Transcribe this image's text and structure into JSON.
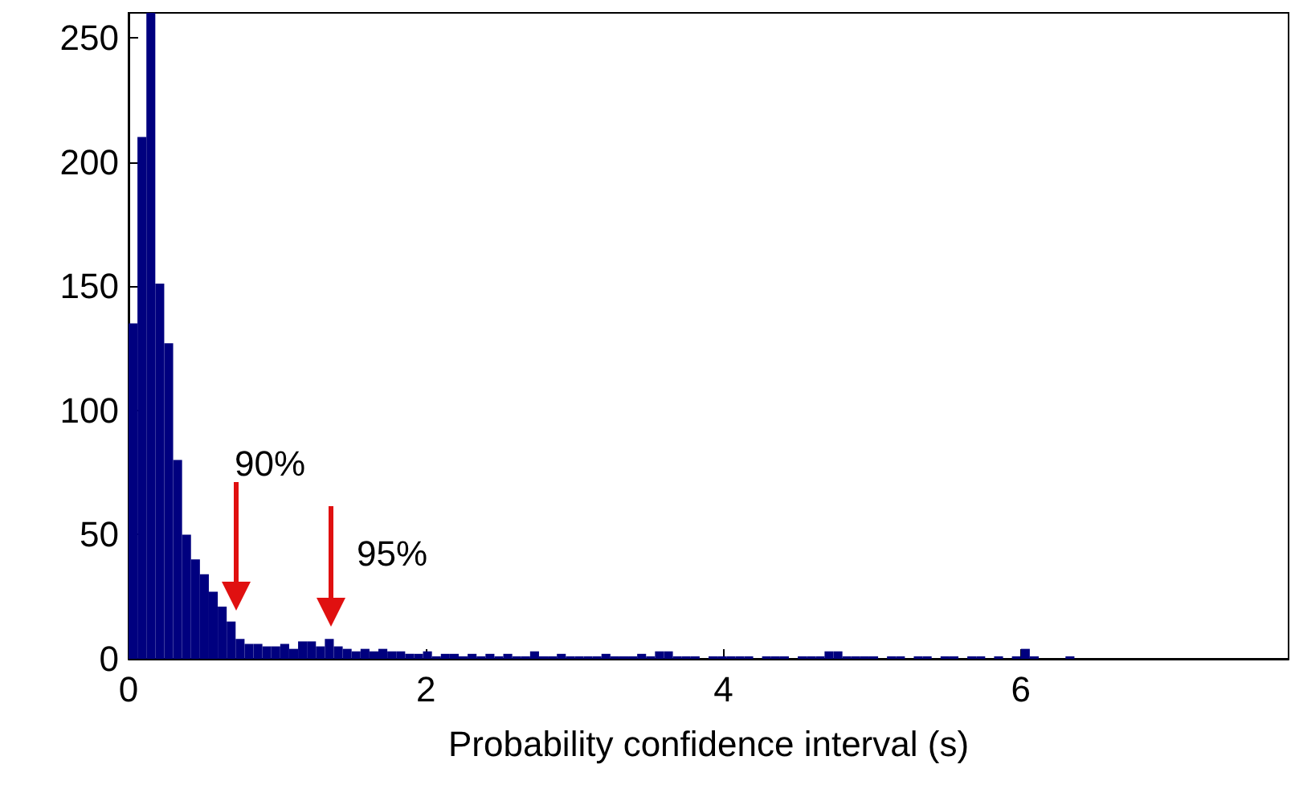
{
  "chart_data": {
    "type": "histogram",
    "xlabel": "Probability confidence interval (s)",
    "color": "#00007f",
    "bins": [
      0,
      0.06,
      0.12,
      0.18,
      0.24,
      0.3,
      0.36,
      0.42,
      0.48,
      0.54,
      0.6,
      0.66,
      0.72,
      0.78,
      0.84,
      0.9,
      0.96,
      1.02,
      1.08,
      1.14,
      1.2,
      1.26,
      1.32,
      1.38,
      1.44,
      1.5,
      1.56,
      1.62,
      1.68,
      1.74,
      1.8,
      1.86,
      1.92,
      1.98,
      2.04,
      2.1,
      2.16,
      2.22,
      2.28,
      2.34,
      2.4,
      2.46,
      2.52,
      2.58,
      2.64,
      2.7,
      2.76,
      2.82,
      2.88,
      2.94,
      3,
      3.06,
      3.12,
      3.18,
      3.24,
      3.3,
      3.36,
      3.42,
      3.48,
      3.54,
      3.6,
      3.66,
      3.72,
      3.78,
      3.84,
      3.9,
      3.96,
      4.02,
      4.08,
      4.14,
      4.2,
      4.26,
      4.32,
      4.38,
      4.44,
      4.5,
      4.56,
      4.62,
      4.68,
      4.74,
      4.8,
      4.86,
      4.92,
      4.98,
      5.04,
      5.1,
      5.16,
      5.22,
      5.28,
      5.34,
      5.4,
      5.46,
      5.52,
      5.58,
      5.64,
      5.7,
      5.76,
      5.82,
      5.88,
      5.94,
      6,
      6.06,
      6.12,
      6.18,
      6.24,
      6.3,
      6.36,
      6.42
    ],
    "values": [
      135,
      210,
      260,
      151,
      127,
      80,
      50,
      40,
      34,
      27,
      21,
      15,
      8,
      6,
      6,
      5,
      5,
      6,
      4,
      7,
      7,
      5,
      8,
      5,
      4,
      3,
      4,
      3,
      4,
      3,
      3,
      2,
      2,
      3,
      1,
      2,
      2,
      1,
      2,
      1,
      2,
      1,
      2,
      1,
      1,
      3,
      1,
      1,
      2,
      1,
      1,
      1,
      1,
      2,
      1,
      1,
      1,
      2,
      1,
      3,
      3,
      1,
      1,
      1,
      0,
      1,
      1,
      1,
      1,
      1,
      0,
      1,
      1,
      1,
      0,
      1,
      1,
      1,
      3,
      3,
      1,
      1,
      1,
      1,
      0,
      1,
      1,
      0,
      1,
      1,
      0,
      1,
      1,
      0,
      1,
      1,
      0,
      1,
      0,
      1,
      4,
      1,
      0,
      0,
      0,
      1,
      0
    ],
    "xlim": [
      0,
      7.8
    ],
    "xticks": [
      0,
      2,
      4,
      6
    ],
    "ylim": [
      0,
      260
    ],
    "yticks": [
      0,
      50,
      100,
      150,
      200,
      250
    ],
    "grid": false,
    "annotations": [
      "90%",
      "95%"
    ]
  }
}
